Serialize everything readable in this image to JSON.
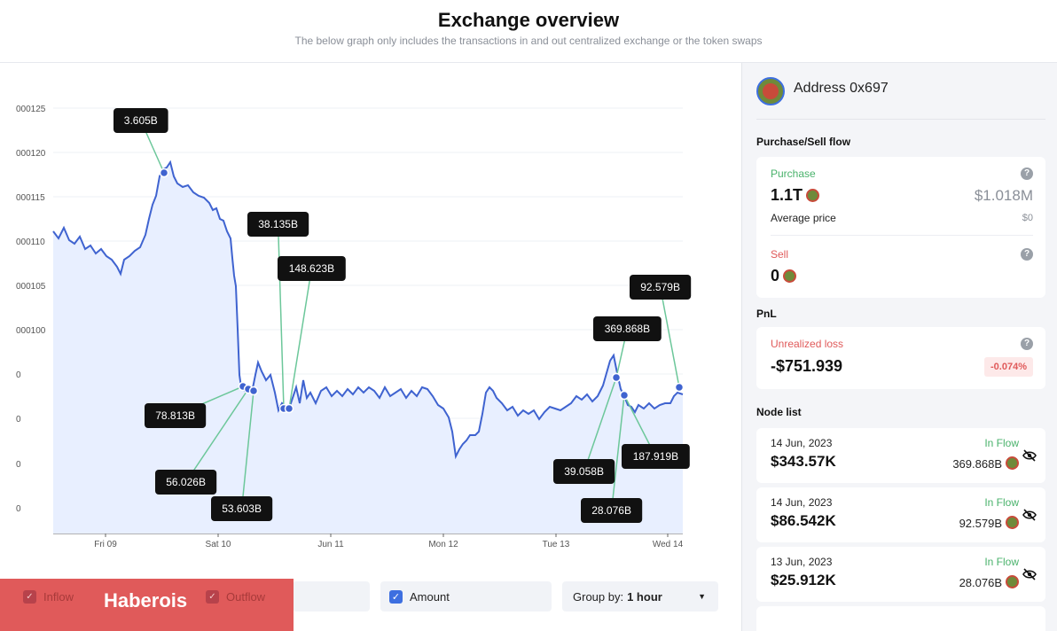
{
  "header": {
    "title": "Exchange overview",
    "subtitle": "The below graph only includes the transactions in and out centralized exchange or the token swaps"
  },
  "chart_data": {
    "type": "line",
    "y_ticks": [
      "000125",
      "000120",
      "000115",
      "000110",
      "000105",
      "000100",
      "0",
      "0",
      "0",
      "0"
    ],
    "x_ticks": [
      "Fri 09",
      "Sat 10",
      "Jun 11",
      "Mon 12",
      "Tue 13",
      "Wed 14"
    ],
    "callouts": [
      "3.605B",
      "38.135B",
      "148.623B",
      "78.813B",
      "56.026B",
      "53.603B",
      "92.579B",
      "369.868B",
      "39.058B",
      "187.919B",
      "28.076B"
    ],
    "series_color": "#3f63d0",
    "fill_color": "#e8efff",
    "callout_line_color": "#6cc79a"
  },
  "controls": {
    "inflow_label": "Inflow",
    "outflow_label": "Outflow",
    "amount_label": "Amount",
    "group_by_label": "Group by:",
    "group_by_value": "1 hour",
    "brand": "Haberois"
  },
  "sidebar": {
    "address_label": "Address 0x697",
    "purchase_sell_title": "Purchase/Sell flow",
    "purchase": {
      "label": "Purchase",
      "amount": "1.1T",
      "usd": "$1.018M",
      "avg_label": "Average price",
      "avg_value": "$0"
    },
    "sell": {
      "label": "Sell",
      "amount": "0"
    },
    "pnl_title": "PnL",
    "pnl": {
      "label": "Unrealized loss",
      "value": "-$751.939",
      "pct": "-0.074%"
    },
    "node_list_title": "Node list",
    "nodes": [
      {
        "date": "14 Jun, 2023",
        "flow": "In Flow",
        "amount": "$343.57K",
        "tokens": "369.868B"
      },
      {
        "date": "14 Jun, 2023",
        "flow": "In Flow",
        "amount": "$86.542K",
        "tokens": "92.579B"
      },
      {
        "date": "13 Jun, 2023",
        "flow": "In Flow",
        "amount": "$25.912K",
        "tokens": "28.076B"
      }
    ]
  }
}
